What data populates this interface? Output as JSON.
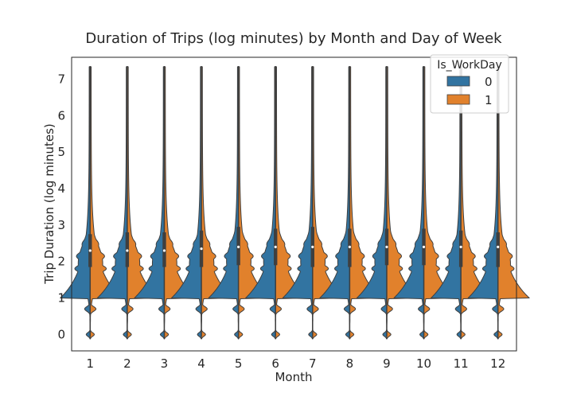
{
  "chart_data": {
    "type": "violin",
    "title": "Duration of Trips (log minutes) by Month and Day of Week",
    "xlabel": "Month",
    "ylabel": "Trip Duration (log minutes)",
    "categories": [
      "1",
      "2",
      "3",
      "4",
      "5",
      "6",
      "7",
      "8",
      "9",
      "10",
      "11",
      "12"
    ],
    "yticks": [
      "0",
      "1",
      "2",
      "3",
      "4",
      "5",
      "6",
      "7"
    ],
    "ylim": [
      -0.45,
      7.6
    ],
    "grid": false,
    "split": true,
    "legend": {
      "title": "Is_WorkDay",
      "placement": "top-right",
      "entries": [
        {
          "label": "0",
          "color": "#3274a1"
        },
        {
          "label": "1",
          "color": "#e1812c"
        }
      ]
    },
    "series": [
      {
        "name": "0",
        "color": "#3274a1",
        "max": [
          7.35,
          7.35,
          7.35,
          7.35,
          7.35,
          7.35,
          7.35,
          7.35,
          7.35,
          7.35,
          7.35,
          7.35
        ],
        "q1": [
          1.85,
          1.85,
          1.85,
          1.85,
          1.9,
          1.9,
          1.85,
          1.85,
          1.9,
          1.9,
          1.85,
          1.85
        ],
        "median": [
          2.3,
          2.3,
          2.3,
          2.35,
          2.4,
          2.4,
          2.4,
          2.4,
          2.4,
          2.4,
          2.4,
          2.4
        ],
        "q3": [
          2.75,
          2.8,
          2.8,
          2.85,
          2.95,
          2.9,
          2.95,
          2.9,
          2.9,
          2.9,
          2.85,
          2.8
        ]
      },
      {
        "name": "1",
        "color": "#e1812c",
        "max": [
          7.35,
          7.35,
          7.35,
          7.35,
          7.35,
          7.35,
          7.35,
          7.35,
          7.35,
          7.35,
          7.35,
          7.35
        ],
        "q1": [
          1.85,
          1.85,
          1.85,
          1.85,
          1.9,
          1.9,
          1.85,
          1.85,
          1.9,
          1.9,
          1.85,
          1.85
        ],
        "median": [
          2.3,
          2.3,
          2.3,
          2.35,
          2.4,
          2.4,
          2.4,
          2.4,
          2.4,
          2.4,
          2.4,
          2.4
        ],
        "q3": [
          2.75,
          2.8,
          2.8,
          2.85,
          2.95,
          2.9,
          2.95,
          2.9,
          2.9,
          2.9,
          2.85,
          2.8
        ]
      }
    ]
  }
}
